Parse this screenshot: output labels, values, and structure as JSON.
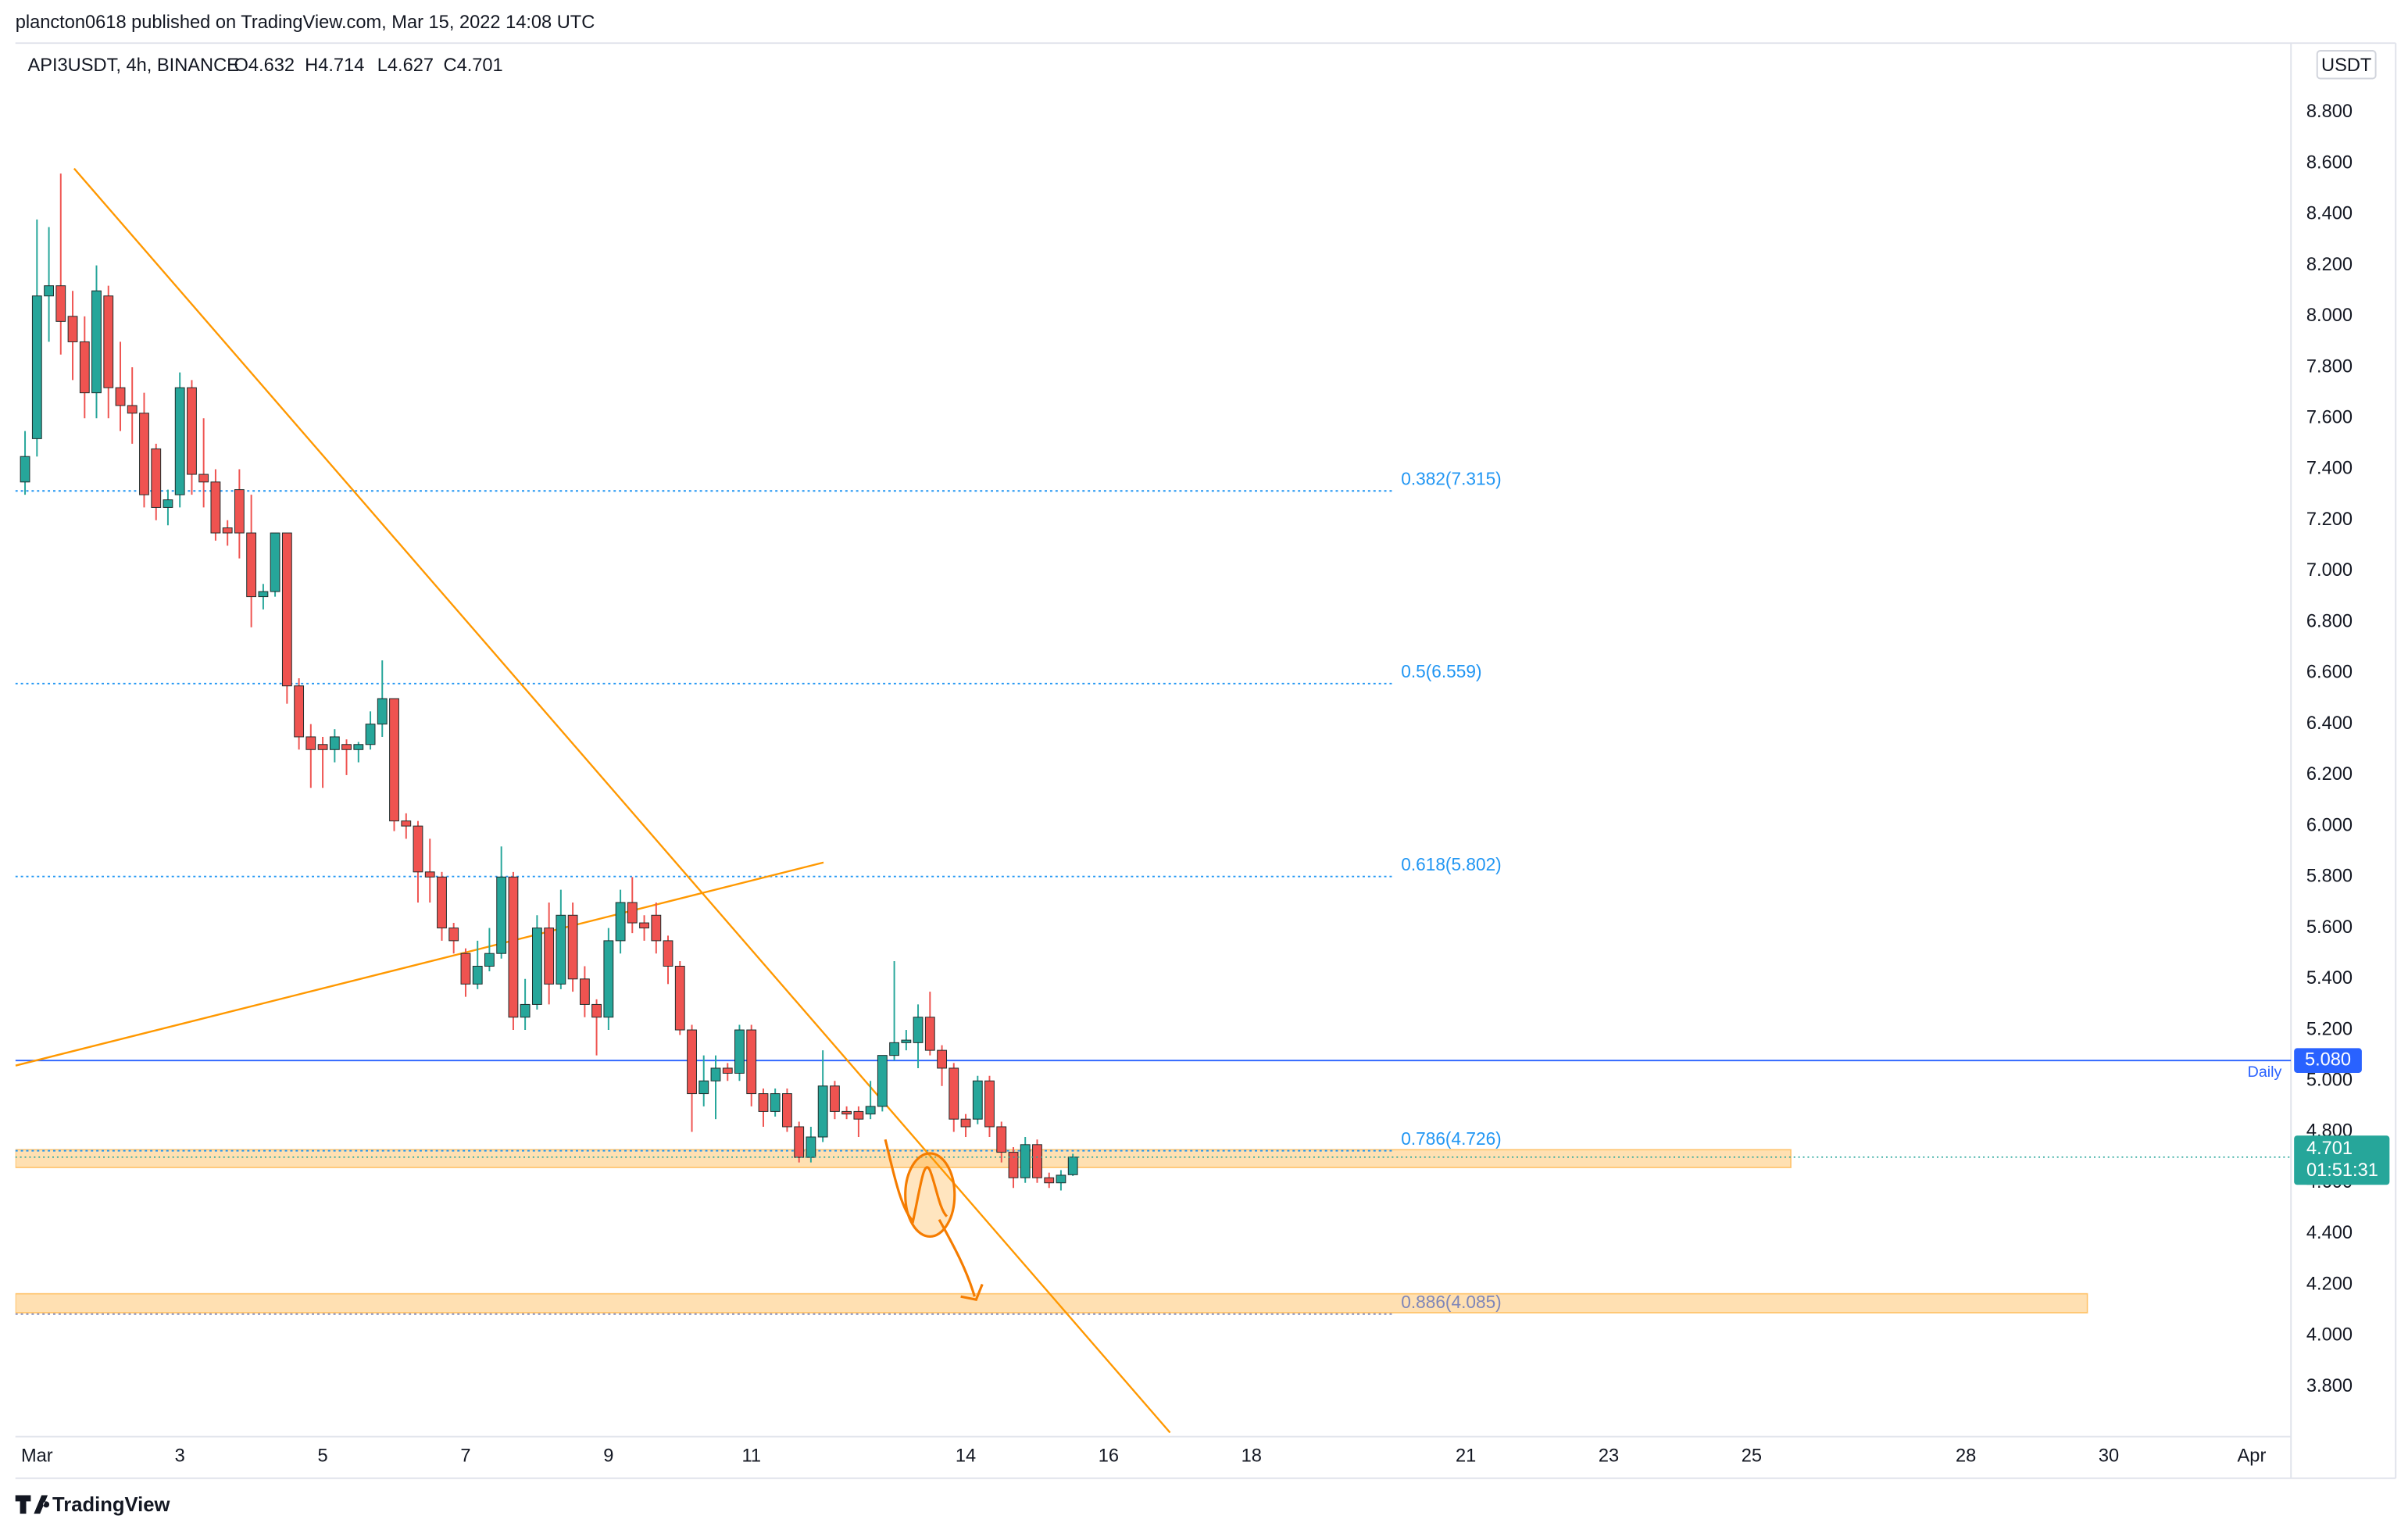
{
  "attribution": "plancton0618 published on TradingView.com, Mar 15, 2022 14:08 UTC",
  "brand": "TradingView",
  "chart_data": {
    "type": "candlestick",
    "title": "API3USDT, 4h, BINANCE",
    "legend_values": [
      "O4.632",
      "H4.714",
      "L4.627",
      "C4.701"
    ],
    "currency": "USDT",
    "up_color": "#26a69a",
    "down_color": "#ef5350",
    "xlim": [
      0.698,
      32.55
    ],
    "ylim": [
      3.604,
      9.072
    ],
    "xticks": [
      {
        "value": 1,
        "label": "Mar"
      },
      3,
      5,
      7,
      9,
      11,
      14,
      16,
      18,
      21,
      23,
      25,
      28,
      30,
      {
        "value": 32,
        "label": "Apr"
      }
    ],
    "yticks": [
      {
        "value": 3.8,
        "label": "3.800"
      },
      {
        "value": 4.0,
        "label": "4.000"
      },
      {
        "value": 4.2,
        "label": "4.200"
      },
      {
        "value": 4.4,
        "label": "4.400"
      },
      {
        "value": 4.6,
        "label": "4.600"
      },
      {
        "value": 4.8,
        "label": "4.800"
      },
      {
        "value": 5.0,
        "label": "5.000"
      },
      {
        "value": 5.2,
        "label": "5.200"
      },
      {
        "value": 5.4,
        "label": "5.400"
      },
      {
        "value": 5.6,
        "label": "5.600"
      },
      {
        "value": 5.8,
        "label": "5.800"
      },
      {
        "value": 6.0,
        "label": "6.000"
      },
      {
        "value": 6.2,
        "label": "6.200"
      },
      {
        "value": 6.4,
        "label": "6.400"
      },
      {
        "value": 6.6,
        "label": "6.600"
      },
      {
        "value": 6.8,
        "label": "6.800"
      },
      {
        "value": 7.0,
        "label": "7.000"
      },
      {
        "value": 7.2,
        "label": "7.200"
      },
      {
        "value": 7.4,
        "label": "7.400"
      },
      {
        "value": 7.6,
        "label": "7.600"
      },
      {
        "value": 7.8,
        "label": "7.800"
      },
      {
        "value": 8.0,
        "label": "8.000"
      },
      {
        "value": 8.2,
        "label": "8.200"
      },
      {
        "value": 8.4,
        "label": "8.400"
      },
      {
        "value": 8.6,
        "label": "8.600"
      },
      {
        "value": 8.8,
        "label": "8.800"
      }
    ],
    "grid": false,
    "x": [
      0.833,
      1,
      1.167,
      1.333,
      1.5,
      1.667,
      1.833,
      2,
      2.167,
      2.333,
      2.5,
      2.667,
      2.833,
      3,
      3.167,
      3.333,
      3.5,
      3.667,
      3.833,
      4,
      4.167,
      4.333,
      4.5,
      4.667,
      4.833,
      5,
      5.167,
      5.333,
      5.5,
      5.667,
      5.833,
      6,
      6.167,
      6.333,
      6.5,
      6.667,
      6.833,
      7,
      7.167,
      7.333,
      7.5,
      7.667,
      7.833,
      8,
      8.167,
      8.333,
      8.5,
      8.667,
      8.833,
      9,
      9.167,
      9.333,
      9.5,
      9.667,
      9.833,
      10,
      10.167,
      10.333,
      10.5,
      10.667,
      10.833,
      11,
      11.167,
      11.333,
      11.5,
      11.667,
      11.833,
      12,
      12.167,
      12.333,
      12.5,
      12.667,
      12.833,
      13,
      13.167,
      13.333,
      13.5,
      13.667,
      13.833,
      14,
      14.167,
      14.333,
      14.5,
      14.667,
      14.833,
      15,
      15.167,
      15.333,
      15.5
    ],
    "open": [
      7.35,
      7.52,
      8.08,
      8.12,
      8.0,
      7.9,
      7.7,
      8.08,
      7.72,
      7.65,
      7.62,
      7.48,
      7.25,
      7.3,
      7.72,
      7.38,
      7.35,
      7.17,
      7.32,
      7.15,
      6.9,
      6.92,
      7.15,
      6.55,
      6.35,
      6.32,
      6.3,
      6.32,
      6.3,
      6.32,
      6.4,
      6.5,
      6.02,
      6.0,
      5.82,
      5.8,
      5.6,
      5.5,
      5.38,
      5.45,
      5.5,
      5.8,
      5.25,
      5.3,
      5.6,
      5.38,
      5.65,
      5.4,
      5.3,
      5.25,
      5.55,
      5.7,
      5.62,
      5.65,
      5.55,
      5.45,
      5.2,
      4.95,
      5.0,
      5.05,
      5.03,
      5.2,
      4.95,
      4.88,
      4.95,
      4.82,
      4.7,
      4.78,
      4.98,
      4.88,
      4.88,
      4.87,
      4.9,
      5.1,
      5.15,
      5.15,
      5.25,
      5.12,
      5.05,
      4.85,
      4.85,
      5.0,
      4.82,
      4.72,
      4.62,
      4.75,
      4.62,
      4.6,
      4.632
    ],
    "high": [
      7.55,
      8.38,
      8.35,
      8.56,
      8.1,
      8.0,
      8.2,
      8.12,
      7.9,
      7.8,
      7.7,
      7.5,
      7.32,
      7.78,
      7.75,
      7.6,
      7.4,
      7.2,
      7.4,
      7.3,
      6.95,
      7.15,
      7.15,
      6.58,
      6.4,
      6.35,
      6.38,
      6.34,
      6.33,
      6.45,
      6.65,
      6.5,
      6.05,
      6.02,
      5.95,
      5.82,
      5.62,
      5.52,
      5.55,
      5.6,
      5.92,
      5.82,
      5.4,
      5.65,
      5.7,
      5.75,
      5.7,
      5.45,
      5.32,
      5.6,
      5.75,
      5.8,
      5.65,
      5.7,
      5.57,
      5.47,
      5.22,
      5.1,
      5.1,
      5.07,
      5.22,
      5.22,
      4.97,
      4.97,
      4.97,
      4.84,
      4.82,
      5.12,
      5.0,
      4.9,
      4.9,
      5.0,
      5.1,
      5.47,
      5.2,
      5.3,
      5.35,
      5.14,
      5.07,
      4.87,
      5.02,
      5.02,
      4.84,
      4.74,
      4.78,
      4.77,
      4.64,
      4.65,
      4.714
    ],
    "low": [
      7.3,
      7.45,
      7.9,
      7.85,
      7.75,
      7.6,
      7.6,
      7.6,
      7.55,
      7.5,
      7.25,
      7.2,
      7.18,
      7.25,
      7.3,
      7.25,
      7.12,
      7.1,
      7.05,
      6.78,
      6.85,
      6.9,
      6.48,
      6.3,
      6.15,
      6.15,
      6.25,
      6.2,
      6.25,
      6.3,
      6.35,
      5.98,
      5.95,
      5.7,
      5.7,
      5.55,
      5.5,
      5.33,
      5.36,
      5.43,
      5.48,
      5.2,
      5.2,
      5.28,
      5.3,
      5.36,
      5.35,
      5.25,
      5.1,
      5.2,
      5.5,
      5.58,
      5.55,
      5.5,
      5.38,
      5.18,
      4.8,
      4.9,
      4.85,
      5.0,
      5.0,
      4.9,
      4.82,
      4.86,
      4.8,
      4.68,
      4.68,
      4.76,
      4.85,
      4.85,
      4.78,
      4.85,
      4.88,
      5.08,
      5.12,
      5.05,
      5.1,
      4.98,
      4.8,
      4.78,
      4.83,
      4.78,
      4.68,
      4.58,
      4.6,
      4.6,
      4.58,
      4.57,
      4.627
    ],
    "close": [
      7.45,
      8.08,
      8.12,
      7.98,
      7.9,
      7.7,
      8.1,
      7.72,
      7.65,
      7.62,
      7.3,
      7.25,
      7.28,
      7.72,
      7.38,
      7.35,
      7.15,
      7.15,
      7.15,
      6.9,
      6.92,
      7.15,
      6.55,
      6.35,
      6.3,
      6.3,
      6.35,
      6.3,
      6.32,
      6.4,
      6.5,
      6.02,
      6.0,
      5.82,
      5.8,
      5.6,
      5.55,
      5.38,
      5.45,
      5.5,
      5.8,
      5.25,
      5.3,
      5.6,
      5.38,
      5.65,
      5.4,
      5.3,
      5.25,
      5.55,
      5.7,
      5.62,
      5.6,
      5.55,
      5.45,
      5.2,
      4.95,
      5.0,
      5.05,
      5.03,
      5.2,
      4.95,
      4.88,
      4.95,
      4.82,
      4.7,
      4.78,
      4.98,
      4.88,
      4.87,
      4.85,
      4.9,
      5.1,
      5.15,
      5.16,
      5.25,
      5.12,
      5.05,
      4.85,
      4.82,
      5.0,
      4.82,
      4.72,
      4.62,
      4.75,
      4.62,
      4.6,
      4.63,
      4.701
    ],
    "levels": [
      {
        "label": "0.382(7.315)",
        "value": 7.315,
        "color": "#2196f3"
      },
      {
        "label": "0.5(6.559)",
        "value": 6.559,
        "color": "#2196f3"
      },
      {
        "label": "0.618(5.802)",
        "value": 5.802,
        "color": "#2196f3"
      },
      {
        "label": "0.786(4.726)",
        "value": 4.726,
        "color": "#2196f3"
      },
      {
        "label": "0.886(4.085)",
        "value": 4.085,
        "color": "#7e86b8"
      }
    ],
    "zones": [
      {
        "from": 4.66,
        "to": 4.73,
        "x": [
          0.698,
          25.55
        ],
        "color": "#ff9800"
      },
      {
        "from": 4.09,
        "to": 4.165,
        "x": [
          0.698,
          29.7
        ],
        "color": "#ff9800"
      }
    ],
    "lines": [
      {
        "x": [
          1.52,
          16.86
        ],
        "y": [
          8.58,
          3.62
        ],
        "color": "#ff9800"
      },
      {
        "x": [
          0.7,
          12.01
        ],
        "y": [
          5.06,
          5.857
        ],
        "color": "#ff9800"
      }
    ],
    "reference_line": {
      "name": "Daily",
      "value": 5.08,
      "label": "5.080",
      "color": "#2962ff"
    },
    "last_price": 4.701,
    "countdown": "01:51:31"
  }
}
